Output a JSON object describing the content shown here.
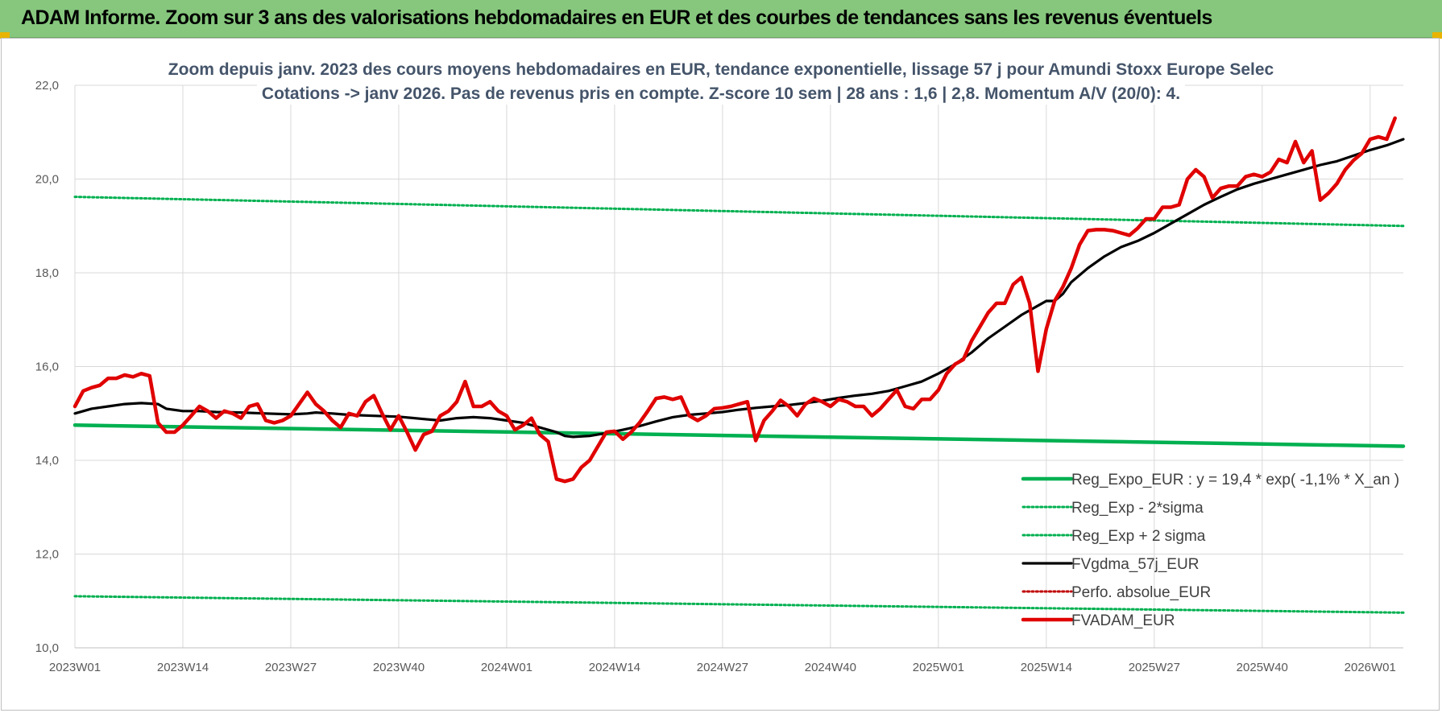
{
  "banner": {
    "title": "ADAM Informe. Zoom sur 3 ans des valorisations hebdomadaires en EUR et des courbes de tendances sans les revenus éventuels",
    "color": "#86c77d"
  },
  "chart_data": {
    "type": "line",
    "title": [
      "Zoom depuis janv. 2023 des cours moyens hebdomadaires en EUR, tendance exponentielle, lissage 57 j pour Amundi Stoxx Europe Selec",
      "Cotations -> janv 2026. Pas de revenus pris en compte. Z-score 10 sem | 28 ans : 1,6 | 2,8. Momentum A/V (20/0): 4."
    ],
    "xlabel": "",
    "ylabel": "",
    "ylim": [
      10,
      22
    ],
    "yticks": [
      "10,0",
      "12,0",
      "14,0",
      "16,0",
      "18,0",
      "20,0",
      "22,0"
    ],
    "xlim": [
      0,
      160
    ],
    "xticks": [
      {
        "label": "2023W01",
        "x": 0
      },
      {
        "label": "2023W14",
        "x": 13
      },
      {
        "label": "2023W27",
        "x": 26
      },
      {
        "label": "2023W40",
        "x": 39
      },
      {
        "label": "2024W01",
        "x": 52
      },
      {
        "label": "2024W14",
        "x": 65
      },
      {
        "label": "2024W27",
        "x": 78
      },
      {
        "label": "2024W40",
        "x": 91
      },
      {
        "label": "2025W01",
        "x": 104
      },
      {
        "label": "2025W14",
        "x": 117
      },
      {
        "label": "2025W27",
        "x": 130
      },
      {
        "label": "2025W40",
        "x": 143
      },
      {
        "label": "2026W01",
        "x": 156
      }
    ],
    "grid": true,
    "legend_position": "bottom-right",
    "series": [
      {
        "name": "Reg_Expo_EUR : y = 19,4 * exp( -1,1% * X_an )",
        "color": "#00b050",
        "style": "solid-thick",
        "points": [
          [
            0,
            14.75
          ],
          [
            160,
            14.3
          ]
        ]
      },
      {
        "name": "Reg_Exp - 2*sigma",
        "color": "#00b050",
        "style": "dotted",
        "points": [
          [
            0,
            11.1
          ],
          [
            160,
            10.75
          ]
        ]
      },
      {
        "name": "Reg_Exp + 2 sigma",
        "color": "#00b050",
        "style": "dotted",
        "points": [
          [
            0,
            19.62
          ],
          [
            160,
            19.0
          ]
        ]
      },
      {
        "name": "FVgdma_57j_EUR",
        "color": "#000000",
        "style": "solid",
        "points": [
          [
            0,
            15.0
          ],
          [
            2,
            15.1
          ],
          [
            4,
            15.15
          ],
          [
            6,
            15.2
          ],
          [
            8,
            15.22
          ],
          [
            10,
            15.2
          ],
          [
            11,
            15.1
          ],
          [
            13,
            15.05
          ],
          [
            15,
            15.05
          ],
          [
            17,
            15.03
          ],
          [
            20,
            15.02
          ],
          [
            23,
            15.0
          ],
          [
            26,
            14.98
          ],
          [
            28,
            15.0
          ],
          [
            29,
            15.02
          ],
          [
            31,
            15.0
          ],
          [
            33,
            14.97
          ],
          [
            36,
            14.95
          ],
          [
            39,
            14.93
          ],
          [
            42,
            14.88
          ],
          [
            44,
            14.85
          ],
          [
            46,
            14.9
          ],
          [
            48,
            14.92
          ],
          [
            50,
            14.9
          ],
          [
            52,
            14.85
          ],
          [
            54,
            14.8
          ],
          [
            56,
            14.7
          ],
          [
            58,
            14.6
          ],
          [
            59,
            14.52
          ],
          [
            60,
            14.5
          ],
          [
            62,
            14.52
          ],
          [
            64,
            14.58
          ],
          [
            66,
            14.65
          ],
          [
            68,
            14.73
          ],
          [
            70,
            14.83
          ],
          [
            72,
            14.92
          ],
          [
            74,
            14.97
          ],
          [
            76,
            15.0
          ],
          [
            78,
            15.03
          ],
          [
            80,
            15.08
          ],
          [
            82,
            15.12
          ],
          [
            84,
            15.15
          ],
          [
            86,
            15.18
          ],
          [
            88,
            15.22
          ],
          [
            90,
            15.27
          ],
          [
            92,
            15.33
          ],
          [
            94,
            15.38
          ],
          [
            96,
            15.42
          ],
          [
            98,
            15.48
          ],
          [
            100,
            15.58
          ],
          [
            102,
            15.68
          ],
          [
            104,
            15.85
          ],
          [
            106,
            16.05
          ],
          [
            108,
            16.3
          ],
          [
            110,
            16.6
          ],
          [
            112,
            16.85
          ],
          [
            114,
            17.1
          ],
          [
            116,
            17.3
          ],
          [
            117,
            17.4
          ],
          [
            118,
            17.4
          ],
          [
            119,
            17.55
          ],
          [
            120,
            17.8
          ],
          [
            122,
            18.1
          ],
          [
            124,
            18.35
          ],
          [
            126,
            18.55
          ],
          [
            128,
            18.68
          ],
          [
            130,
            18.85
          ],
          [
            132,
            19.05
          ],
          [
            134,
            19.25
          ],
          [
            136,
            19.45
          ],
          [
            138,
            19.62
          ],
          [
            140,
            19.78
          ],
          [
            142,
            19.9
          ],
          [
            144,
            20.0
          ],
          [
            146,
            20.1
          ],
          [
            148,
            20.2
          ],
          [
            150,
            20.3
          ],
          [
            152,
            20.38
          ],
          [
            154,
            20.5
          ],
          [
            156,
            20.62
          ],
          [
            158,
            20.72
          ],
          [
            160,
            20.85
          ]
        ]
      },
      {
        "name": "Perfo. absolue_EUR",
        "color": "#c00000",
        "style": "dotted",
        "points": []
      },
      {
        "name": "FVADAM_EUR",
        "color": "#e00000",
        "style": "solid-thick",
        "points": [
          [
            0,
            15.15
          ],
          [
            1,
            15.48
          ],
          [
            2,
            15.55
          ],
          [
            3,
            15.6
          ],
          [
            4,
            15.75
          ],
          [
            5,
            15.75
          ],
          [
            6,
            15.82
          ],
          [
            7,
            15.78
          ],
          [
            8,
            15.85
          ],
          [
            9,
            15.8
          ],
          [
            10,
            14.8
          ],
          [
            11,
            14.6
          ],
          [
            12,
            14.6
          ],
          [
            13,
            14.75
          ],
          [
            14,
            14.95
          ],
          [
            15,
            15.15
          ],
          [
            16,
            15.05
          ],
          [
            17,
            14.9
          ],
          [
            18,
            15.05
          ],
          [
            19,
            15.0
          ],
          [
            20,
            14.9
          ],
          [
            21,
            15.15
          ],
          [
            22,
            15.2
          ],
          [
            23,
            14.85
          ],
          [
            24,
            14.8
          ],
          [
            25,
            14.85
          ],
          [
            26,
            14.95
          ],
          [
            27,
            15.2
          ],
          [
            28,
            15.45
          ],
          [
            29,
            15.2
          ],
          [
            30,
            15.05
          ],
          [
            31,
            14.85
          ],
          [
            32,
            14.7
          ],
          [
            33,
            15.0
          ],
          [
            34,
            14.95
          ],
          [
            35,
            15.25
          ],
          [
            36,
            15.38
          ],
          [
            37,
            15.0
          ],
          [
            38,
            14.65
          ],
          [
            39,
            14.95
          ],
          [
            40,
            14.6
          ],
          [
            41,
            14.22
          ],
          [
            42,
            14.55
          ],
          [
            43,
            14.62
          ],
          [
            44,
            14.95
          ],
          [
            45,
            15.05
          ],
          [
            46,
            15.25
          ],
          [
            47,
            15.68
          ],
          [
            48,
            15.15
          ],
          [
            49,
            15.15
          ],
          [
            50,
            15.25
          ],
          [
            51,
            15.05
          ],
          [
            52,
            14.95
          ],
          [
            53,
            14.65
          ],
          [
            54,
            14.75
          ],
          [
            55,
            14.9
          ],
          [
            56,
            14.55
          ],
          [
            57,
            14.4
          ],
          [
            58,
            13.6
          ],
          [
            59,
            13.55
          ],
          [
            60,
            13.6
          ],
          [
            61,
            13.85
          ],
          [
            62,
            14.0
          ],
          [
            63,
            14.3
          ],
          [
            64,
            14.6
          ],
          [
            65,
            14.62
          ],
          [
            66,
            14.45
          ],
          [
            67,
            14.6
          ],
          [
            68,
            14.8
          ],
          [
            69,
            15.05
          ],
          [
            70,
            15.32
          ],
          [
            71,
            15.35
          ],
          [
            72,
            15.3
          ],
          [
            73,
            15.35
          ],
          [
            74,
            14.95
          ],
          [
            75,
            14.85
          ],
          [
            76,
            14.95
          ],
          [
            77,
            15.1
          ],
          [
            78,
            15.12
          ],
          [
            79,
            15.15
          ],
          [
            80,
            15.2
          ],
          [
            81,
            15.25
          ],
          [
            82,
            14.42
          ],
          [
            83,
            14.85
          ],
          [
            84,
            15.05
          ],
          [
            85,
            15.28
          ],
          [
            86,
            15.15
          ],
          [
            87,
            14.95
          ],
          [
            88,
            15.2
          ],
          [
            89,
            15.32
          ],
          [
            90,
            15.25
          ],
          [
            91,
            15.15
          ],
          [
            92,
            15.3
          ],
          [
            93,
            15.25
          ],
          [
            94,
            15.15
          ],
          [
            95,
            15.15
          ],
          [
            96,
            14.95
          ],
          [
            97,
            15.1
          ],
          [
            98,
            15.3
          ],
          [
            99,
            15.5
          ],
          [
            100,
            15.15
          ],
          [
            101,
            15.1
          ],
          [
            102,
            15.3
          ],
          [
            103,
            15.3
          ],
          [
            104,
            15.5
          ],
          [
            105,
            15.85
          ],
          [
            106,
            16.05
          ],
          [
            107,
            16.15
          ],
          [
            108,
            16.55
          ],
          [
            109,
            16.85
          ],
          [
            110,
            17.15
          ],
          [
            111,
            17.35
          ],
          [
            112,
            17.35
          ],
          [
            113,
            17.75
          ],
          [
            114,
            17.9
          ],
          [
            115,
            17.35
          ],
          [
            116,
            15.9
          ],
          [
            117,
            16.8
          ],
          [
            118,
            17.4
          ],
          [
            119,
            17.7
          ],
          [
            120,
            18.1
          ],
          [
            121,
            18.6
          ],
          [
            122,
            18.9
          ],
          [
            123,
            18.92
          ],
          [
            124,
            18.92
          ],
          [
            125,
            18.9
          ],
          [
            126,
            18.85
          ],
          [
            127,
            18.8
          ],
          [
            128,
            18.95
          ],
          [
            129,
            19.15
          ],
          [
            130,
            19.15
          ],
          [
            131,
            19.4
          ],
          [
            132,
            19.4
          ],
          [
            133,
            19.45
          ],
          [
            134,
            20.0
          ],
          [
            135,
            20.2
          ],
          [
            136,
            20.05
          ],
          [
            137,
            19.6
          ],
          [
            138,
            19.8
          ],
          [
            139,
            19.85
          ],
          [
            140,
            19.85
          ],
          [
            141,
            20.05
          ],
          [
            142,
            20.1
          ],
          [
            143,
            20.05
          ],
          [
            144,
            20.15
          ],
          [
            145,
            20.42
          ],
          [
            146,
            20.35
          ],
          [
            147,
            20.8
          ],
          [
            148,
            20.35
          ],
          [
            149,
            20.6
          ],
          [
            150,
            19.55
          ],
          [
            151,
            19.7
          ],
          [
            152,
            19.9
          ],
          [
            153,
            20.2
          ],
          [
            154,
            20.4
          ],
          [
            155,
            20.55
          ],
          [
            156,
            20.85
          ],
          [
            157,
            20.9
          ],
          [
            158,
            20.85
          ],
          [
            159,
            21.3
          ]
        ]
      }
    ]
  }
}
